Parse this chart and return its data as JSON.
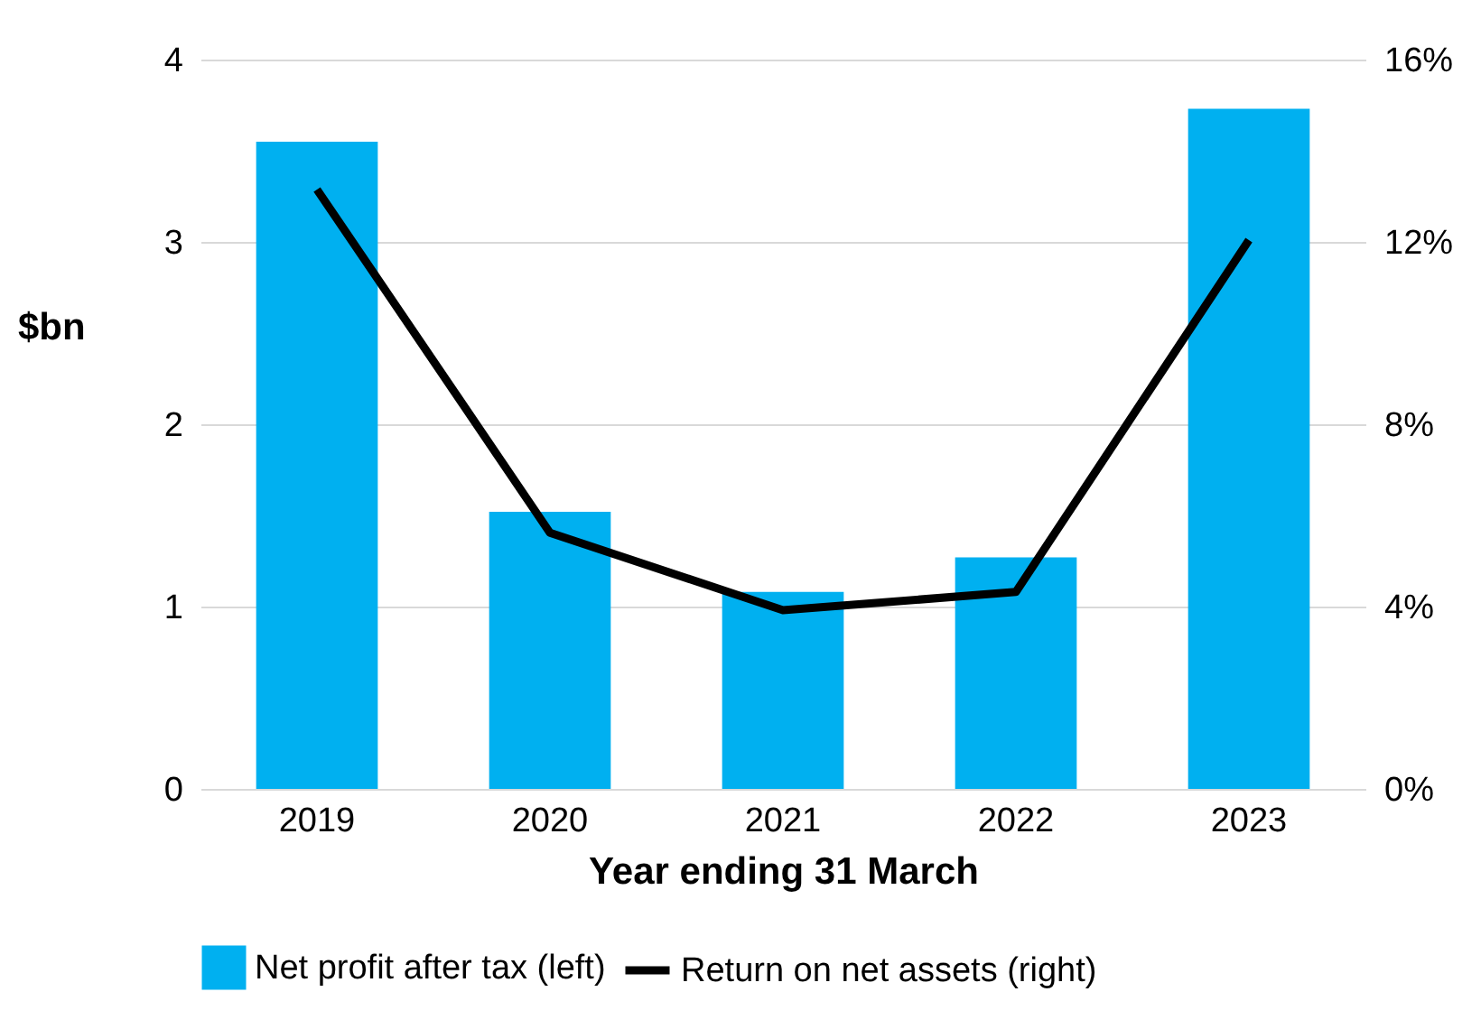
{
  "chart_data": {
    "type": "bar",
    "xlabel": "Year ending 31 March",
    "ylabel": "$bn",
    "categories": [
      "2019",
      "2020",
      "2021",
      "2022",
      "2023"
    ],
    "series": [
      {
        "name": "Net profit after tax (left)",
        "color": "#00b0f0",
        "values": [
          3.55,
          1.52,
          1.08,
          1.27,
          3.73
        ]
      },
      {
        "name": "Return on net assets (right)",
        "type": "line",
        "axis": "y2",
        "color": "#000000",
        "values": [
          13.15,
          5.62,
          3.92,
          4.32,
          12.04
        ]
      }
    ],
    "ylim": [
      0,
      4
    ],
    "yticks": [
      0,
      1,
      2,
      3,
      4
    ],
    "y2lim": [
      0,
      16
    ],
    "y2ticks": [
      {
        "value": 0,
        "label": "0%"
      },
      {
        "value": 4,
        "label": "4%"
      },
      {
        "value": 8,
        "label": "8%"
      },
      {
        "value": 12,
        "label": "12%"
      },
      {
        "value": 16,
        "label": "16%"
      }
    ],
    "grid": "y",
    "legend": "bottom",
    "marker": "none",
    "line_style": "solid"
  }
}
